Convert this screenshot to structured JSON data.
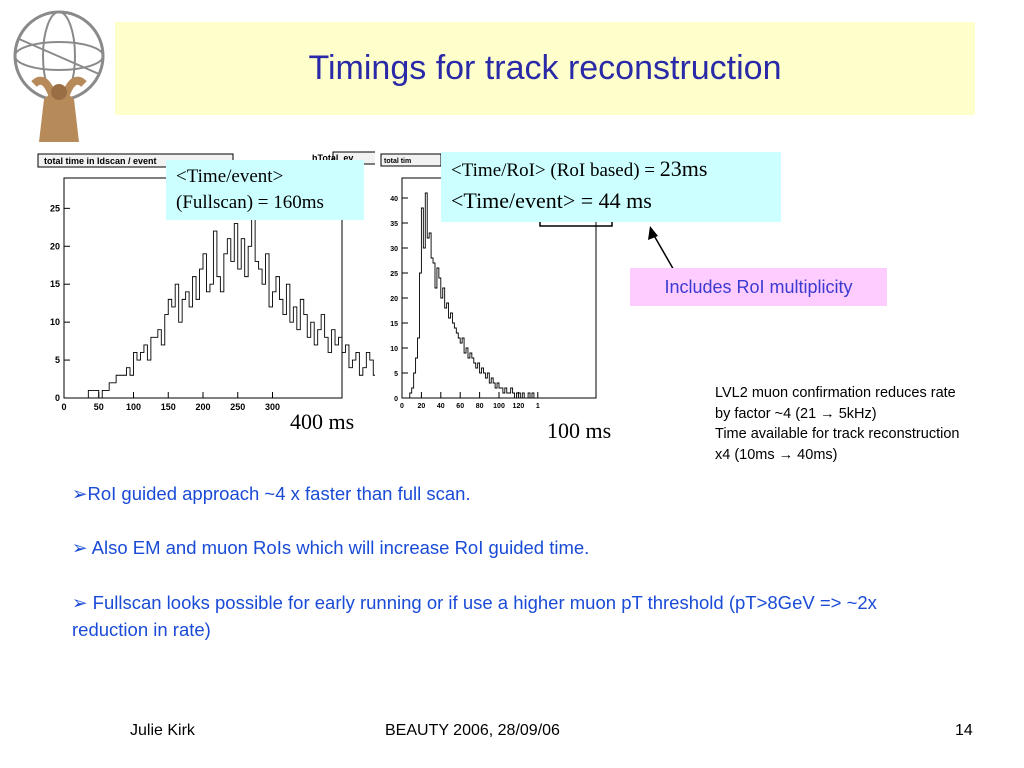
{
  "slide": {
    "title": "Timings for track reconstruction",
    "accent_color": "#2a2aa8",
    "title_band_color": "#ffffcc"
  },
  "notes": {
    "fullscan_line1": "<Time/event>",
    "fullscan_line2": "(Fullscan) = 160ms",
    "roi_line1_prefix": "<Time/RoI> (RoI based) = ",
    "roi_line1_value": "23ms",
    "roi_line2": "<Time/event> = 44 ms",
    "includes": "Includes RoI multiplicity",
    "label_400": "400 ms",
    "label_100": "100 ms"
  },
  "lvl2": [
    "LVL2 muon confirmation reduces rate",
    "by factor ~4 (21 → 5kHz)",
    "Time available for track reconstruction",
    "x4 (10ms → 40ms)"
  ],
  "bullets": [
    "➢RoI guided approach ~4 x faster than full scan.",
    "➢ Also EM and muon RoIs which will increase RoI guided time.",
    "➢ Fullscan looks possible for early running or if use a higher muon pT threshold (pT>8GeV => ~2x reduction in rate)"
  ],
  "footer": {
    "author": "Julie Kirk",
    "event": "BEAUTY 2006, 28/09/06",
    "page": "14"
  },
  "chart_data": [
    {
      "type": "bar",
      "title": "total time in Idscan  / event",
      "stats_label": "hTotal_ev",
      "x_ticks": [
        "0",
        "50",
        "100",
        "150",
        "200",
        "250",
        "300"
      ],
      "y_ticks": [
        "0",
        "5",
        "10",
        "15",
        "20",
        "25"
      ],
      "xlim": [
        0,
        400
      ],
      "ylim": [
        0,
        29
      ],
      "bin_width": 5,
      "values": [
        0,
        0,
        0,
        0,
        0,
        0,
        0,
        1,
        1,
        1,
        0,
        1,
        1,
        2,
        2,
        3,
        3,
        3,
        4,
        3,
        6,
        5,
        6,
        7,
        5,
        8,
        8,
        9,
        7,
        11,
        13,
        12,
        15,
        10,
        13,
        14,
        12,
        16,
        13,
        17,
        19,
        14,
        15,
        22,
        16,
        14,
        19,
        21,
        18,
        23,
        17,
        21,
        16,
        20,
        24,
        18,
        17,
        15,
        19,
        12,
        14,
        16,
        13,
        11,
        15,
        10,
        12,
        9,
        13,
        11,
        8,
        10,
        7,
        9,
        11,
        8,
        6,
        9,
        7,
        8,
        6,
        7,
        4,
        5,
        6,
        3,
        4,
        6,
        5,
        3,
        2,
        4,
        3,
        2,
        1,
        2,
        1,
        3,
        2,
        1
      ]
    },
    {
      "type": "bar",
      "title": "total tim",
      "x_ticks": [
        "0",
        "20",
        "40",
        "60",
        "80",
        "100",
        "120",
        "1"
      ],
      "y_ticks": [
        "0",
        "5",
        "10",
        "15",
        "20",
        "25",
        "30",
        "35",
        "40"
      ],
      "xlim": [
        0,
        200
      ],
      "ylim": [
        0,
        44
      ],
      "bin_width": 2,
      "values": [
        0,
        0,
        0,
        0,
        1,
        2,
        5,
        8,
        12,
        25,
        38,
        30,
        41,
        32,
        33,
        28,
        27,
        22,
        26,
        24,
        20,
        22,
        18,
        19,
        16,
        17,
        15,
        14,
        13,
        12,
        11,
        12,
        9,
        10,
        8,
        9,
        8,
        7,
        6,
        7,
        5,
        6,
        5,
        4,
        5,
        3,
        4,
        3,
        2,
        3,
        2,
        2,
        1,
        2,
        1,
        1,
        2,
        1,
        0,
        1,
        1,
        0,
        1,
        0,
        0,
        1,
        0,
        1,
        0,
        0,
        0,
        0,
        0,
        0,
        0,
        0,
        0,
        0,
        0,
        0,
        0,
        0,
        0,
        0,
        0,
        0,
        0,
        0,
        0,
        0,
        0,
        0,
        0,
        0,
        0,
        0,
        0,
        0,
        0,
        0
      ]
    }
  ]
}
